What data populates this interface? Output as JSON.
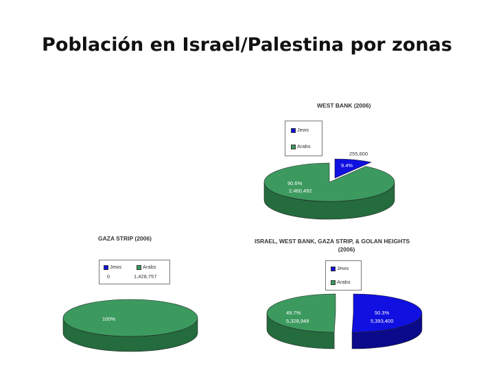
{
  "slide": {
    "title": "Población en Israel/Palestina por zonas"
  },
  "colors": {
    "jews": "#1010e0",
    "jews_side": "#0a0a8a",
    "arabs": "#3c9a5f",
    "arabs_side": "#246b3d"
  },
  "chart_data": [
    {
      "id": "west-bank",
      "type": "pie",
      "title": "WEST BANK (2006)",
      "legend": [
        "Jews",
        "Arabs"
      ],
      "series": [
        {
          "name": "Jews",
          "pct_label": "9.4%",
          "value_label": "255,600",
          "value": 255600
        },
        {
          "name": "Arabs",
          "pct_label": "90.6%",
          "value_label": "2,460,492",
          "value": 2460492
        }
      ]
    },
    {
      "id": "gaza-strip",
      "type": "pie",
      "title": "GAZA STRIP (2006)",
      "legend": [
        "Jews",
        "Arabs"
      ],
      "legend_values": [
        "0",
        "1,428,757"
      ],
      "series": [
        {
          "name": "Jews",
          "value": 0
        },
        {
          "name": "Arabs",
          "pct_label": "100%",
          "value": 1428757
        }
      ]
    },
    {
      "id": "israel-total",
      "type": "pie",
      "title": "ISRAEL, WEST BANK, GAZA STRIP, & GOLAN HEIGHTS",
      "subtitle": "(2006)",
      "legend": [
        "Jews",
        "Arabs"
      ],
      "series": [
        {
          "name": "Jews",
          "pct_label": "50.3%",
          "value_label": "5,393,400",
          "value": 5393400
        },
        {
          "name": "Arabs",
          "pct_label": "49.7%",
          "value_label": "5,328,949",
          "value": 5328949
        }
      ]
    }
  ]
}
